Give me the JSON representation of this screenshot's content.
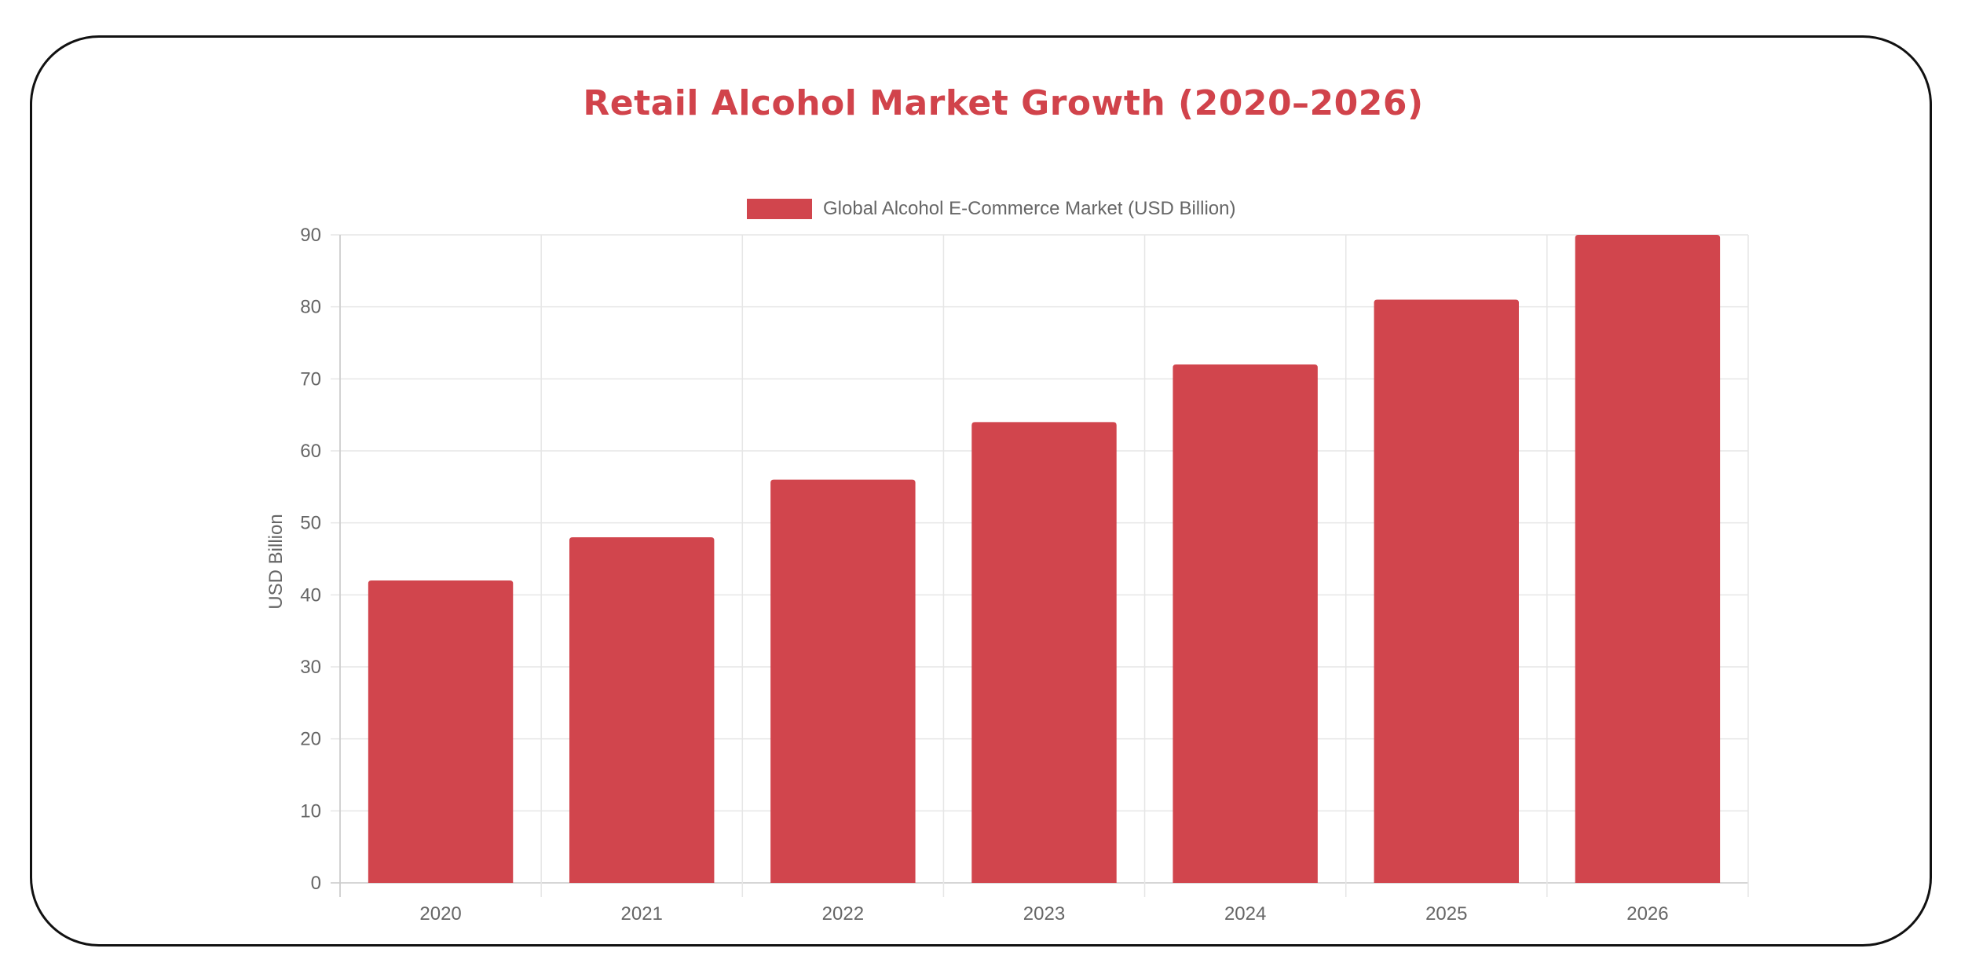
{
  "chart_data": {
    "type": "bar",
    "title": "Retail Alcohol Market Growth (2020–2026)",
    "categories": [
      "2020",
      "2021",
      "2022",
      "2023",
      "2024",
      "2025",
      "2026"
    ],
    "series": [
      {
        "name": "Global Alcohol E-Commerce Market (USD Billion)",
        "values": [
          42,
          48,
          56,
          64,
          72,
          81,
          90
        ],
        "color": "#d1454d"
      }
    ],
    "xlabel": "",
    "ylabel": "USD Billion",
    "ylim": [
      0,
      90
    ],
    "yticks": [
      "0",
      "10",
      "20",
      "30",
      "40",
      "50",
      "60",
      "70",
      "80",
      "90"
    ],
    "grid": true,
    "legend_position": "top-center"
  }
}
